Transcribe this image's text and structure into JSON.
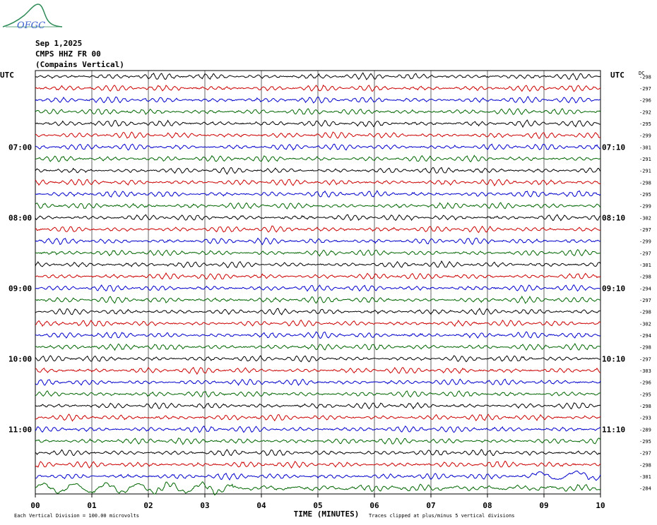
{
  "header": {
    "logo_text": "OFGC",
    "date": "Sep 1,2025",
    "station": "CMPS HHZ FR 00",
    "location": "(Compains Vertical)"
  },
  "chart_data": {
    "type": "helicorder",
    "xlabel": "TIME (MINUTES)",
    "x_ticks": [
      "00",
      "01",
      "02",
      "03",
      "04",
      "05",
      "06",
      "07",
      "08",
      "09",
      "10"
    ],
    "xlim": [
      0,
      10
    ],
    "left_axis_title": "UTC",
    "right_axis_title": "UTC",
    "dc_label": "DC",
    "left_hour_labels": [
      {
        "row": 6,
        "label": "07:00"
      },
      {
        "row": 12,
        "label": "08:00"
      },
      {
        "row": 18,
        "label": "09:00"
      },
      {
        "row": 24,
        "label": "10:00"
      },
      {
        "row": 30,
        "label": "11:00"
      }
    ],
    "right_hour_labels": [
      {
        "row": 6,
        "label": "07:10"
      },
      {
        "row": 12,
        "label": "08:10"
      },
      {
        "row": 18,
        "label": "09:10"
      },
      {
        "row": 24,
        "label": "10:10"
      },
      {
        "row": 30,
        "label": "11:10"
      }
    ],
    "trace_colors": [
      "#000000",
      "#cc0000",
      "#0000cc",
      "#006600"
    ],
    "dc_offsets": [
      -298,
      -297,
      -296,
      -292,
      -295,
      -299,
      -301,
      -291,
      -291,
      -298,
      -295,
      -299,
      -302,
      -297,
      -299,
      -297,
      -301,
      -298,
      -294,
      -297,
      -298,
      -302,
      -294,
      -298,
      -297,
      -303,
      -296,
      -295,
      -298,
      -293,
      -289,
      -295,
      -297,
      -298,
      -301,
      -284
    ],
    "row_minutes": 10,
    "footer_left": "Each Vertical Division =  100.00 microvolts",
    "footer_right": "Traces clipped at plus/minus 5 vertical divisions"
  }
}
